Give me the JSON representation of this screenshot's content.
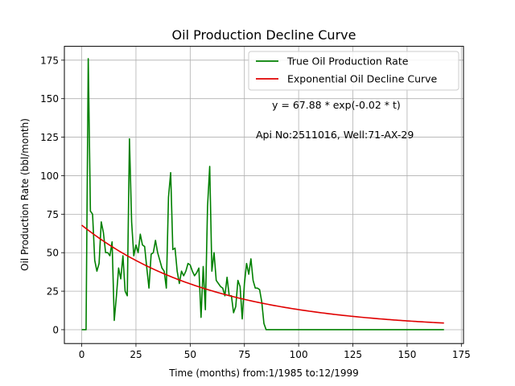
{
  "chart_data": {
    "type": "line",
    "title": "Oil Production Decline Curve",
    "xlabel": "Time (months) from:1/1985 to:12/1999",
    "ylabel": "Oil Production Rate (bbl/month)",
    "xlim": [
      -8,
      176
    ],
    "ylim": [
      -9,
      184
    ],
    "xticks": [
      0,
      25,
      50,
      75,
      100,
      125,
      150,
      175
    ],
    "yticks": [
      0,
      25,
      50,
      75,
      100,
      125,
      150,
      175
    ],
    "grid": true,
    "legend_position": "top-right",
    "annotations": [
      "y = 67.88 * exp(-0.02 * t)",
      "Api No:2511016, Well:71-AX-29"
    ],
    "series": [
      {
        "name": "True Oil Production Rate",
        "color": "#008000",
        "points": [
          [
            0,
            0
          ],
          [
            1,
            0
          ],
          [
            2,
            0
          ],
          [
            3,
            176
          ],
          [
            4,
            77
          ],
          [
            5,
            75
          ],
          [
            6,
            45
          ],
          [
            7,
            38
          ],
          [
            8,
            43
          ],
          [
            9,
            70
          ],
          [
            10,
            63
          ],
          [
            11,
            50
          ],
          [
            12,
            50
          ],
          [
            13,
            48
          ],
          [
            14,
            57
          ],
          [
            15,
            6
          ],
          [
            16,
            22
          ],
          [
            17,
            40
          ],
          [
            18,
            33
          ],
          [
            19,
            48
          ],
          [
            20,
            25
          ],
          [
            21,
            22
          ],
          [
            22,
            124
          ],
          [
            23,
            70
          ],
          [
            24,
            48
          ],
          [
            25,
            55
          ],
          [
            26,
            50
          ],
          [
            27,
            62
          ],
          [
            28,
            55
          ],
          [
            29,
            54
          ],
          [
            30,
            40
          ],
          [
            31,
            27
          ],
          [
            32,
            49
          ],
          [
            33,
            50
          ],
          [
            34,
            58
          ],
          [
            35,
            50
          ],
          [
            36,
            45
          ],
          [
            37,
            40
          ],
          [
            38,
            38
          ],
          [
            39,
            27
          ],
          [
            40,
            86
          ],
          [
            41,
            102
          ],
          [
            42,
            52
          ],
          [
            43,
            53
          ],
          [
            44,
            38
          ],
          [
            45,
            30
          ],
          [
            46,
            38
          ],
          [
            47,
            35
          ],
          [
            48,
            38
          ],
          [
            49,
            43
          ],
          [
            50,
            42
          ],
          [
            51,
            38
          ],
          [
            52,
            35
          ],
          [
            53,
            37
          ],
          [
            54,
            40
          ],
          [
            55,
            8
          ],
          [
            56,
            41
          ],
          [
            57,
            13
          ],
          [
            58,
            80
          ],
          [
            59,
            106
          ],
          [
            60,
            38
          ],
          [
            61,
            50
          ],
          [
            62,
            32
          ],
          [
            63,
            30
          ],
          [
            64,
            28
          ],
          [
            65,
            27
          ],
          [
            66,
            22
          ],
          [
            67,
            34
          ],
          [
            68,
            22
          ],
          [
            69,
            22
          ],
          [
            70,
            11
          ],
          [
            71,
            15
          ],
          [
            72,
            32
          ],
          [
            73,
            28
          ],
          [
            74,
            7
          ],
          [
            75,
            30
          ],
          [
            76,
            43
          ],
          [
            77,
            36
          ],
          [
            78,
            46
          ],
          [
            79,
            32
          ],
          [
            80,
            27
          ],
          [
            81,
            27
          ],
          [
            82,
            26
          ],
          [
            83,
            18
          ],
          [
            84,
            4
          ],
          [
            85,
            0
          ],
          [
            90,
            0
          ],
          [
            100,
            0
          ],
          [
            110,
            0
          ],
          [
            120,
            0
          ],
          [
            130,
            0
          ],
          [
            140,
            0
          ],
          [
            150,
            0
          ],
          [
            160,
            0
          ],
          [
            167,
            0
          ]
        ]
      },
      {
        "name": "Exponential Oil Decline Curve",
        "color": "#e00000",
        "fit": {
          "a": 67.88,
          "b": 0.0165,
          "x_start": 0,
          "x_end": 167
        }
      }
    ]
  }
}
